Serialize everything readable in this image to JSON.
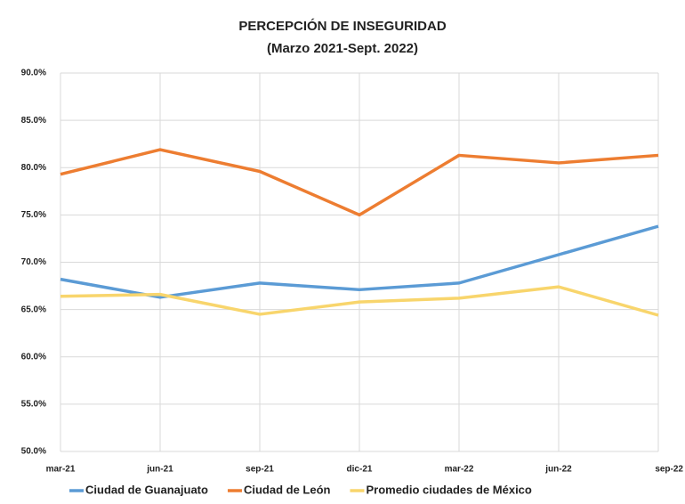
{
  "chart_data": {
    "type": "line",
    "title": "PERCEPCIÓN DE INSEGURIDAD",
    "subtitle": "(Marzo 2021-Sept. 2022)",
    "categories": [
      "mar-21",
      "jun-21",
      "sep-21",
      "dic-21",
      "mar-22",
      "jun-22",
      "sep-22"
    ],
    "series": [
      {
        "name": "Ciudad de Guanajuato",
        "color": "#5b9bd5",
        "values": [
          68.2,
          66.3,
          67.8,
          67.1,
          67.8,
          70.8,
          73.8
        ]
      },
      {
        "name": "Ciudad de León",
        "color": "#ed7d31",
        "values": [
          79.3,
          81.9,
          79.6,
          75.0,
          81.3,
          80.5,
          81.3
        ]
      },
      {
        "name": "Promedio ciudades de México",
        "color": "#f8d56c",
        "values": [
          66.4,
          66.6,
          64.5,
          65.8,
          66.2,
          67.4,
          64.4
        ]
      }
    ],
    "ylim": [
      50,
      90
    ],
    "yticks": [
      {
        "value": 50,
        "label": "50.0%"
      },
      {
        "value": 55,
        "label": "55.0%"
      },
      {
        "value": 60,
        "label": "60.0%"
      },
      {
        "value": 65,
        "label": "65.0%"
      },
      {
        "value": 70,
        "label": "70.0%"
      },
      {
        "value": 75,
        "label": "75.0%"
      },
      {
        "value": 80,
        "label": "80.0%"
      },
      {
        "value": 85,
        "label": "85.0%"
      },
      {
        "value": 90,
        "label": "90.0%"
      }
    ],
    "grid": true,
    "legend": "bottom"
  }
}
